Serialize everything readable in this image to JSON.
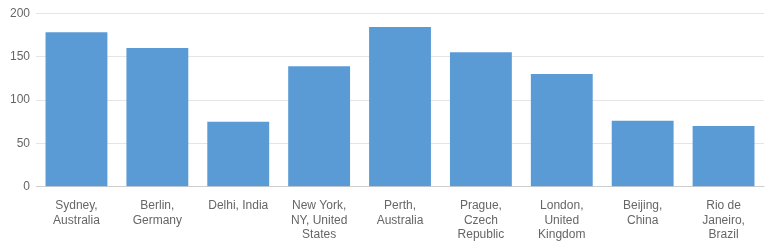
{
  "chart_data": {
    "type": "bar",
    "categories": [
      "Sydney,\nAustralia",
      "Berlin,\nGermany",
      "Delhi, India",
      "New York,\nNY, United\nStates",
      "Perth,\nAustralia",
      "Prague,\nCzech\nRepublic",
      "London,\nUnited\nKingdom",
      "Beijing,\nChina",
      "Rio de\nJaneiro,\nBrazil"
    ],
    "values": [
      178,
      160,
      75,
      139,
      184,
      155,
      130,
      76,
      70
    ],
    "color": "#5b9bd5",
    "ylim": [
      0,
      200
    ],
    "yticks": [
      0,
      50,
      100,
      150,
      200
    ],
    "grid": true
  }
}
